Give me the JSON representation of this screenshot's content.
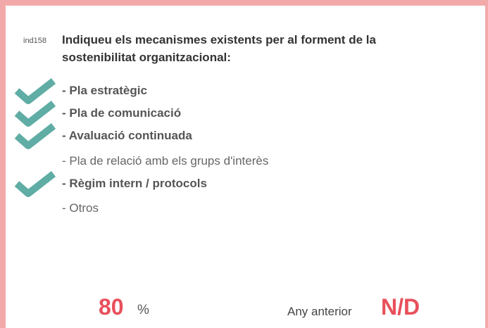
{
  "indicator": {
    "id": "ind158",
    "title": "Indiqueu els mecanismes existents per al forment de la sostenibilitat organitzacional:",
    "items": [
      {
        "text": "- Pla estratègic",
        "checked": true
      },
      {
        "text": "- Pla de comunicació",
        "checked": true
      },
      {
        "text": "- Avaluació continuada",
        "checked": true
      },
      {
        "text": "- Pla de relació amb els grups d'interès",
        "checked": false
      },
      {
        "text": "- Règim intern / protocols",
        "checked": true
      },
      {
        "text": "- Otros",
        "checked": false
      }
    ],
    "value": "80",
    "unit": "%",
    "previous_label": "Any anterior",
    "previous_value": "N/D"
  }
}
